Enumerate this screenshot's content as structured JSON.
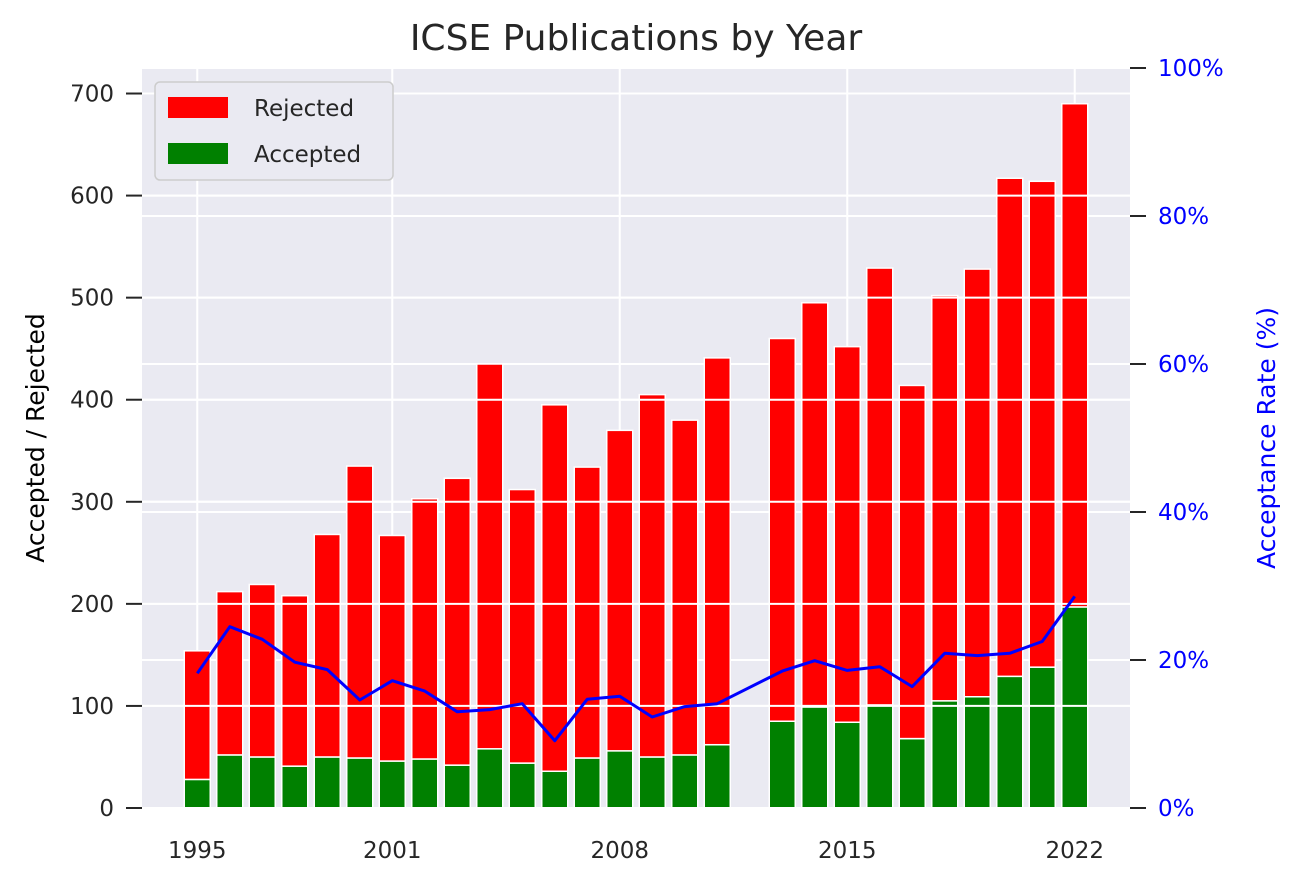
{
  "chart_data": {
    "type": "bar",
    "title": "ICSE Publications by Year",
    "ylabel": "Accepted / Rejected",
    "y2label": "Acceptance Rate (%)",
    "stacked": true,
    "x": [
      1995,
      1996,
      1997,
      1998,
      1999,
      2000,
      2001,
      2002,
      2003,
      2004,
      2005,
      2006,
      2007,
      2008,
      2009,
      2010,
      2011,
      2013,
      2014,
      2015,
      2016,
      2017,
      2018,
      2019,
      2020,
      2021,
      2022
    ],
    "series": [
      {
        "name": "Accepted",
        "color": "#008000",
        "values": [
          28,
          52,
          50,
          41,
          50,
          49,
          46,
          48,
          42,
          58,
          44,
          36,
          49,
          56,
          50,
          52,
          62,
          85,
          99,
          84,
          101,
          68,
          105,
          109,
          129,
          138,
          197
        ]
      },
      {
        "name": "Rejected",
        "color": "#ff0000",
        "values": [
          126,
          160,
          169,
          167,
          218,
          286,
          221,
          255,
          281,
          377,
          268,
          359,
          285,
          314,
          355,
          328,
          379,
          375,
          396,
          368,
          428,
          346,
          397,
          419,
          488,
          476,
          493
        ]
      },
      {
        "name": "Acceptance Rate",
        "type": "line",
        "axis": "right",
        "color": "#0000ff",
        "values": [
          18.2,
          24.5,
          22.8,
          19.7,
          18.7,
          14.6,
          17.2,
          15.8,
          13.0,
          13.3,
          14.1,
          9.1,
          14.7,
          15.1,
          12.3,
          13.7,
          14.1,
          18.5,
          19.9,
          18.6,
          19.1,
          16.4,
          20.9,
          20.6,
          20.9,
          22.5,
          28.6
        ]
      }
    ],
    "xticks": [
      "1995",
      "2001",
      "2008",
      "2015",
      "2022"
    ],
    "yticks": [
      "0",
      "100",
      "200",
      "300",
      "400",
      "500",
      "600",
      "700"
    ],
    "y2ticks": [
      "0%",
      "20%",
      "40%",
      "60%",
      "80%",
      "100%"
    ],
    "ylim": [
      0,
      725
    ],
    "y2lim": [
      0,
      100
    ],
    "xlim": [
      1993.3,
      2023.7
    ],
    "grid": true,
    "legend_position": "upper-left",
    "legend": [
      "Rejected",
      "Accepted"
    ]
  }
}
